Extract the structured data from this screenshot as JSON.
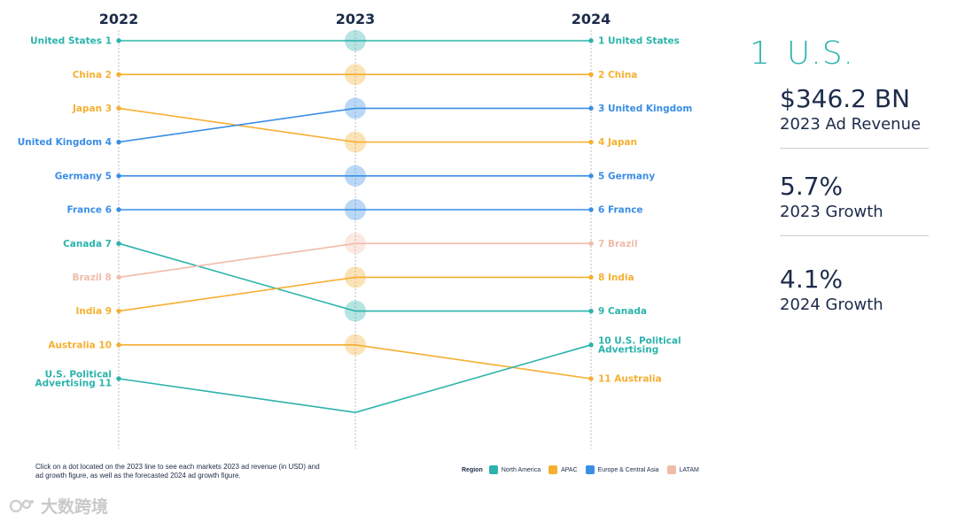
{
  "chart_data": {
    "type": "slope",
    "columns": [
      "2022",
      "2023",
      "2024"
    ],
    "region_colors": {
      "North America": "#2bb3ac",
      "APAC": "#f5b031",
      "Europe & Central Asia": "#3a8ee6",
      "LATAM": "#f0bca9"
    },
    "markets": [
      {
        "id": "us",
        "region": "North America",
        "ranks": [
          1,
          1,
          1
        ],
        "label_2022": "United States 1",
        "label_2024": "1 United States"
      },
      {
        "id": "cn",
        "region": "APAC",
        "ranks": [
          2,
          2,
          2
        ],
        "label_2022": "China 2",
        "label_2024": "2 China"
      },
      {
        "id": "jp",
        "region": "APAC",
        "ranks": [
          3,
          4,
          4
        ],
        "label_2022": "Japan 3",
        "label_2024": "4 Japan"
      },
      {
        "id": "uk",
        "region": "Europe & Central Asia",
        "ranks": [
          4,
          3,
          3
        ],
        "label_2022": "United Kingdom 4",
        "label_2024": "3 United Kingdom"
      },
      {
        "id": "de",
        "region": "Europe & Central Asia",
        "ranks": [
          5,
          5,
          5
        ],
        "label_2022": "Germany 5",
        "label_2024": "5 Germany"
      },
      {
        "id": "fr",
        "region": "Europe & Central Asia",
        "ranks": [
          6,
          6,
          6
        ],
        "label_2022": "France 6",
        "label_2024": "6 France"
      },
      {
        "id": "ca",
        "region": "North America",
        "ranks": [
          7,
          9,
          9
        ],
        "label_2022": "Canada 7",
        "label_2024": "9 Canada"
      },
      {
        "id": "br",
        "region": "LATAM",
        "ranks": [
          8,
          7,
          7
        ],
        "label_2022": "Brazil 8",
        "label_2024": "7 Brazil"
      },
      {
        "id": "in",
        "region": "APAC",
        "ranks": [
          9,
          8,
          8
        ],
        "label_2022": "India 9",
        "label_2024": "8 India"
      },
      {
        "id": "au",
        "region": "APAC",
        "ranks": [
          10,
          10,
          11
        ],
        "label_2022": "Australia 10",
        "label_2024": "11 Australia"
      },
      {
        "id": "pol",
        "region": "North America",
        "ranks": [
          11,
          12,
          10
        ],
        "label_2022": [
          "U.S. Political",
          "Advertising 11"
        ],
        "label_2024": [
          "10 U.S. Political",
          "Advertising"
        ]
      }
    ]
  },
  "note": "Click on a dot located on the 2023 line to see each markets 2023 ad revenue (in USD) and ad growth figure, as well as the forecasted 2024 ad growth figure.",
  "legend": {
    "title": "Region",
    "items": [
      {
        "label": "North America",
        "color": "#2bb3ac"
      },
      {
        "label": "APAC",
        "color": "#f5b031"
      },
      {
        "label": "Europe & Central Asia",
        "color": "#3a8ee6"
      },
      {
        "label": "LATAM",
        "color": "#f0bca9"
      }
    ]
  },
  "panel": {
    "rank": "1",
    "market": "U.S.",
    "stats": [
      {
        "value": "$346.2 BN",
        "label": "2023 Ad Revenue"
      },
      {
        "value": "5.7%",
        "label": "2023 Growth"
      },
      {
        "value": "4.1%",
        "label": "2024 Growth"
      }
    ]
  },
  "watermark": "大数跨境"
}
